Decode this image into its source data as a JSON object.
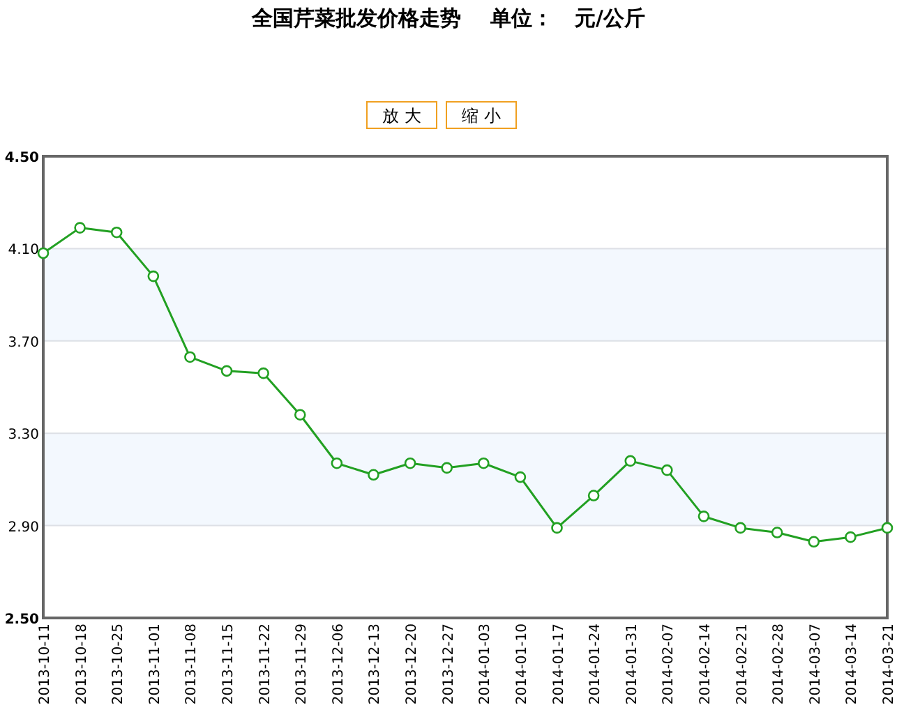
{
  "chart_data": {
    "type": "line",
    "title": "全国芹菜批发价格走势    单位：   元/公斤",
    "annotations": [
      "放 大",
      "缩 小"
    ],
    "categories": [
      "2013-10-11",
      "2013-10-18",
      "2013-10-25",
      "2013-11-01",
      "2013-11-08",
      "2013-11-15",
      "2013-11-22",
      "2013-11-29",
      "2013-12-06",
      "2013-12-13",
      "2013-12-20",
      "2013-12-27",
      "2014-01-03",
      "2014-01-10",
      "2014-01-17",
      "2014-01-24",
      "2014-01-31",
      "2014-02-07",
      "2014-02-14",
      "2014-02-21",
      "2014-02-28",
      "2014-03-07",
      "2014-03-14",
      "2014-03-21"
    ],
    "series": [
      {
        "color": "#22a022",
        "values": [
          4.08,
          4.19,
          4.17,
          3.98,
          3.63,
          3.57,
          3.56,
          3.38,
          3.17,
          3.12,
          3.17,
          3.15,
          3.17,
          3.11,
          2.89,
          3.03,
          3.18,
          3.14,
          2.94,
          2.89,
          2.87,
          2.83,
          2.85,
          2.89
        ]
      }
    ],
    "ylim": [
      2.5,
      4.5
    ],
    "yticks": [
      {
        "value": 2.5,
        "label": "2.50"
      },
      {
        "value": 2.9,
        "label": "2.90"
      },
      {
        "value": 3.3,
        "label": "3.30"
      },
      {
        "value": 3.7,
        "label": "3.70"
      },
      {
        "value": 4.1,
        "label": "4.10"
      },
      {
        "value": 4.5,
        "label": "4.50"
      }
    ],
    "bands": [
      {
        "axis": "y",
        "from": 2.9,
        "to": 3.3,
        "color": "#f3f8fe"
      },
      {
        "axis": "y",
        "from": 3.7,
        "to": 4.1,
        "color": "#f3f8fe"
      }
    ],
    "grid": "y",
    "marker": "circle"
  }
}
